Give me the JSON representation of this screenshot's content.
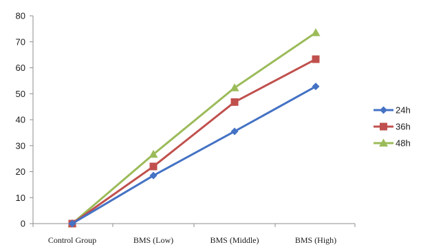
{
  "chart_data": {
    "type": "line",
    "title": "",
    "xlabel": "",
    "ylabel": "",
    "categories": [
      "Control Group",
      "BMS (Low)",
      "BMS (Middle)",
      "BMS (High)"
    ],
    "ylim": [
      0,
      80
    ],
    "yticks": [
      0,
      10,
      20,
      30,
      40,
      50,
      60,
      70,
      80
    ],
    "grid": false,
    "legend": "right",
    "series": [
      {
        "name": "24h",
        "values": [
          0,
          18.5,
          35.5,
          52.8
        ],
        "color": "#4472C4",
        "marker": "diamond"
      },
      {
        "name": "36h",
        "values": [
          0,
          22,
          46.8,
          63.3
        ],
        "color": "#C0504D",
        "marker": "square"
      },
      {
        "name": "48h",
        "values": [
          0,
          26.7,
          52.3,
          73.5
        ],
        "color": "#9BBB59",
        "marker": "triangle"
      }
    ]
  }
}
